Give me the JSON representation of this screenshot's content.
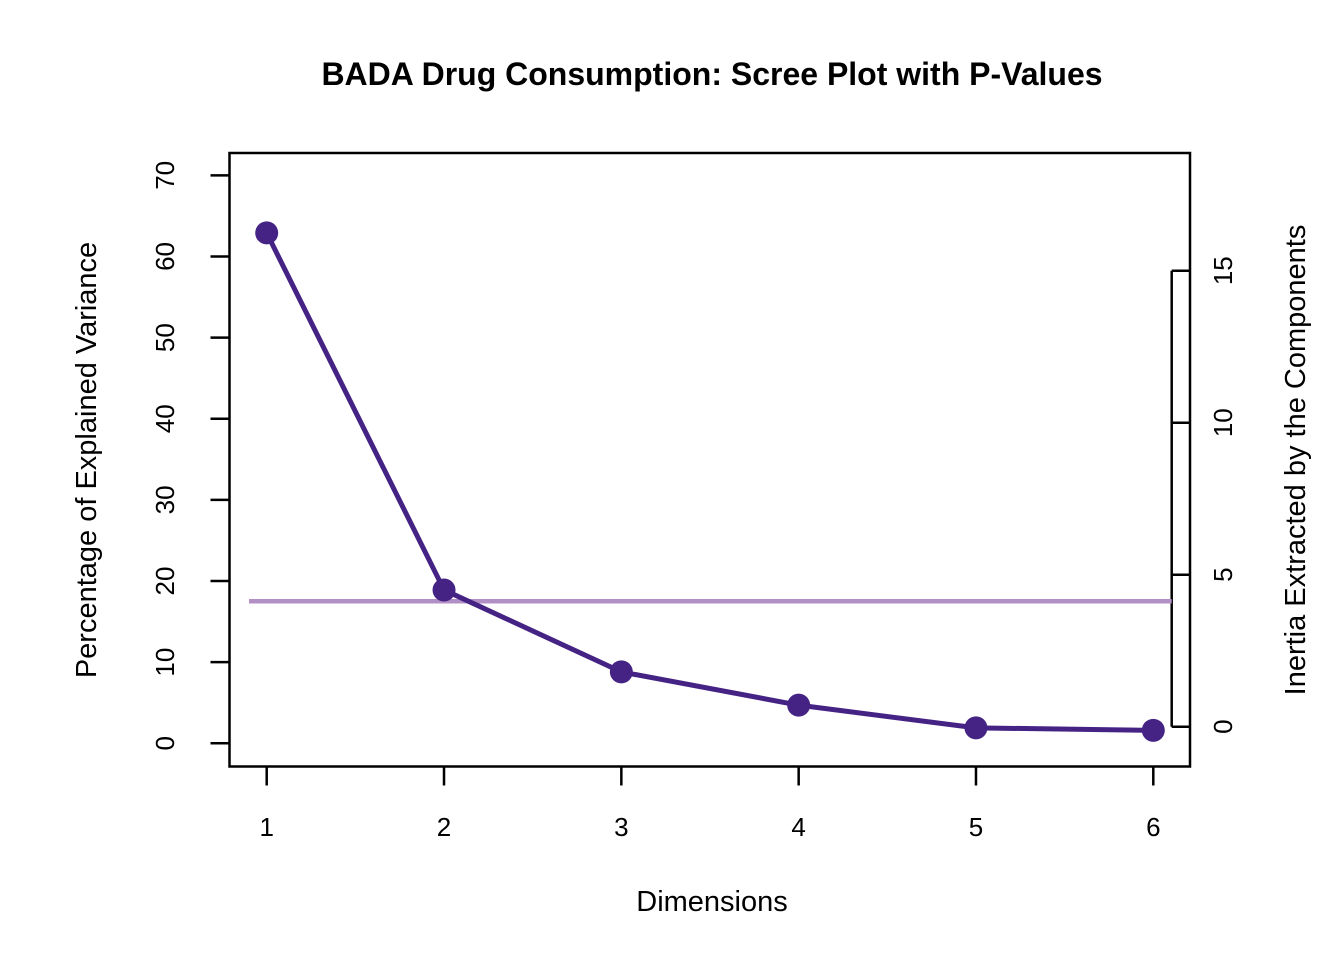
{
  "chart_data": {
    "type": "line",
    "title": "BADA Drug Consumption: Scree Plot with P-Values",
    "xlabel": "Dimensions",
    "ylabel_left": "Percentage of Explained Variance",
    "ylabel_right": "Inertia Extracted by the Components",
    "x": [
      1,
      2,
      3,
      4,
      5,
      6
    ],
    "series": [
      {
        "name": "percentage-of-explained-variance",
        "values": [
          62.9,
          18.9,
          8.8,
          4.7,
          1.9,
          1.6
        ],
        "marker": "filled-circle"
      }
    ],
    "x_tick_labels": [
      "1",
      "2",
      "3",
      "4",
      "5",
      "6"
    ],
    "left_axis_ticks": [
      0,
      10,
      20,
      30,
      40,
      50,
      60,
      70
    ],
    "left_axis_range": [
      0,
      70
    ],
    "right_axis_ticks": [
      0,
      5,
      10,
      15
    ],
    "x_range": [
      1,
      6
    ],
    "threshold_line_percent": 17.5,
    "grid": false,
    "legend": false,
    "colors": {
      "point": "#452384",
      "line": "#452384",
      "threshold_line": "#B28FC5",
      "axis_and_text": "#000000",
      "background": "#FFFFFF"
    }
  }
}
